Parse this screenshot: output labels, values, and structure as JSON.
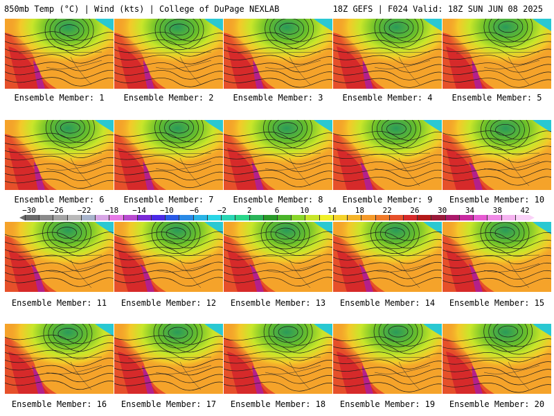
{
  "header": {
    "left_title": "850mb Temp (°C) | Wind (kts) | College of DuPage NEXLAB",
    "right_title": "18Z GEFS | F024 Valid: 18Z SUN JUN 08 2025"
  },
  "members": [
    {
      "label": "Ensemble Member: 1"
    },
    {
      "label": "Ensemble Member: 2"
    },
    {
      "label": "Ensemble Member: 3"
    },
    {
      "label": "Ensemble Member: 4"
    },
    {
      "label": "Ensemble Member: 5"
    },
    {
      "label": "Ensemble Member: 6"
    },
    {
      "label": "Ensemble Member: 7"
    },
    {
      "label": "Ensemble Member: 8"
    },
    {
      "label": "Ensemble Member: 9"
    },
    {
      "label": "Ensemble Member: 10"
    },
    {
      "label": "Ensemble Member: 11"
    },
    {
      "label": "Ensemble Member: 12"
    },
    {
      "label": "Ensemble Member: 13"
    },
    {
      "label": "Ensemble Member: 14"
    },
    {
      "label": "Ensemble Member: 15"
    },
    {
      "label": "Ensemble Member: 16"
    },
    {
      "label": "Ensemble Member: 17"
    },
    {
      "label": "Ensemble Member: 18"
    },
    {
      "label": "Ensemble Member: 19"
    },
    {
      "label": "Ensemble Member: 20"
    }
  ],
  "colorbar": {
    "ticks": [
      "−30",
      "−26",
      "−22",
      "−18",
      "−14",
      "−10",
      "−6",
      "−2",
      "2",
      "6",
      "10",
      "14",
      "18",
      "22",
      "26",
      "30",
      "34",
      "38",
      "42"
    ],
    "colors": [
      "#6b6b6b",
      "#8a8a8a",
      "#a3a3a3",
      "#b9b9b9",
      "#a8b4cc",
      "#d8a6e6",
      "#e67ae6",
      "#b84ad0",
      "#7a2ad6",
      "#4a2ae6",
      "#2a5ae6",
      "#2a8ae6",
      "#2ab4e6",
      "#2ad6e6",
      "#2ad6b4",
      "#2ad68a",
      "#2ab45a",
      "#2a9a2a",
      "#4ab42a",
      "#8ad62a",
      "#c8e62a",
      "#f0f02a",
      "#f5d22a",
      "#f5b42a",
      "#f59a2a",
      "#f07a2a",
      "#e6502a",
      "#d62a2a",
      "#b41a1a",
      "#9a1a3a",
      "#aa1a6a",
      "#c82aa0",
      "#e65ad2",
      "#f08ae6",
      "#f5b4f0",
      "#fad2f8"
    ]
  }
}
